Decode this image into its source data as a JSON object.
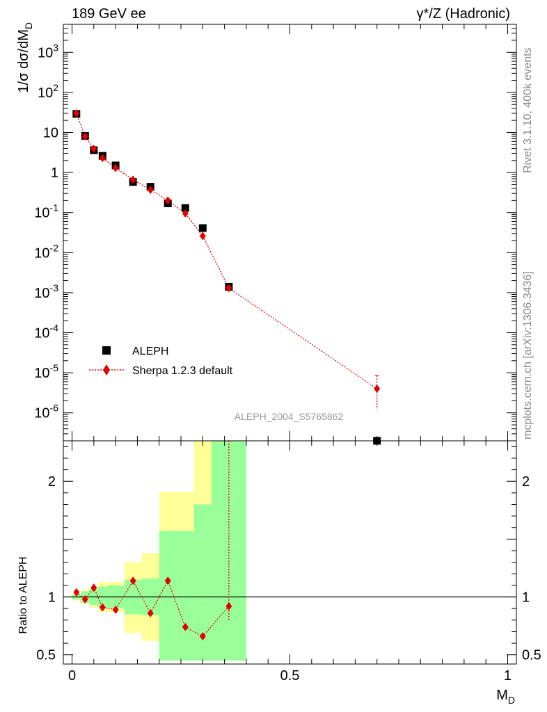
{
  "header": {
    "left": "189 GeV ee",
    "right": "γ*/Z (Hadronic)"
  },
  "side": {
    "top": "Rivet 3.1.10,  400k events",
    "bottom": "mcplots.cern.ch [arXiv:1306.3436]"
  },
  "watermark": "ALEPH_2004_S5765862",
  "colors": {
    "data": "#000000",
    "mc": "#e30000",
    "band_inner": "#99ff99",
    "band_outer": "#ffff99"
  },
  "chart_data": [
    {
      "type": "scatter",
      "ylabel": "1/σ  dσ/dM_D",
      "yscale": "log",
      "ylim": [
        2e-07,
        5000
      ],
      "xlim": [
        -0.02,
        1.02
      ],
      "y_ticks": [
        {
          "v": 1000.0,
          "label": "10^3"
        },
        {
          "v": 100.0,
          "label": "10^2"
        },
        {
          "v": 10,
          "label": "10"
        },
        {
          "v": 1,
          "label": "1"
        },
        {
          "v": 0.1,
          "label": "10^-1"
        },
        {
          "v": 0.01,
          "label": "10^-2"
        },
        {
          "v": 0.001,
          "label": "10^-3"
        },
        {
          "v": 0.0001,
          "label": "10^-4"
        },
        {
          "v": 1e-05,
          "label": "10^-5"
        },
        {
          "v": 1e-06,
          "label": "10^-6"
        }
      ],
      "legend": {
        "placement": "lower-left",
        "entries": [
          "ALEPH",
          "Sherpa 1.2.3 default"
        ]
      },
      "series": [
        {
          "name": "ALEPH",
          "marker": "square",
          "x": [
            0.01,
            0.03,
            0.05,
            0.07,
            0.1,
            0.14,
            0.18,
            0.22,
            0.26,
            0.3,
            0.36,
            0.7
          ],
          "y": [
            29,
            8.2,
            3.6,
            2.6,
            1.5,
            0.58,
            0.44,
            0.17,
            0.13,
            0.041,
            0.0014,
            2e-07
          ]
        },
        {
          "name": "Sherpa 1.2.3 default",
          "marker": "diamond",
          "line": "dotted",
          "x": [
            0.01,
            0.03,
            0.05,
            0.07,
            0.1,
            0.14,
            0.18,
            0.22,
            0.26,
            0.3,
            0.36,
            0.7
          ],
          "y": [
            30,
            8.0,
            3.9,
            2.3,
            1.3,
            0.66,
            0.37,
            0.2,
            0.095,
            0.026,
            0.0013,
            4e-06
          ],
          "err_last": [
            1.2e-06,
            8.5e-06
          ]
        }
      ]
    },
    {
      "type": "scatter",
      "xlabel": "M_D",
      "ylabel": "Ratio to ALEPH",
      "xlim": [
        -0.02,
        1.02
      ],
      "ylim": [
        0.42,
        2.35
      ],
      "x_ticks": [
        {
          "v": 0,
          "label": "0"
        },
        {
          "v": 0.5,
          "label": "0.5"
        },
        {
          "v": 1,
          "label": "1"
        }
      ],
      "y_ticks": [
        {
          "v": 0.5,
          "label": "0.5"
        },
        {
          "v": 1,
          "label": "1"
        },
        {
          "v": 2,
          "label": "2"
        }
      ],
      "reference_line": 1,
      "bands": [
        {
          "x0": 0.0,
          "x1": 0.02,
          "inner": [
            0.98,
            1.02
          ],
          "outer": [
            0.97,
            1.03
          ]
        },
        {
          "x0": 0.02,
          "x1": 0.04,
          "inner": [
            0.95,
            1.05
          ],
          "outer": [
            0.94,
            1.06
          ]
        },
        {
          "x0": 0.04,
          "x1": 0.06,
          "inner": [
            0.93,
            1.07
          ],
          "outer": [
            0.91,
            1.09
          ]
        },
        {
          "x0": 0.06,
          "x1": 0.08,
          "inner": [
            0.91,
            1.09
          ],
          "outer": [
            0.87,
            1.13
          ]
        },
        {
          "x0": 0.08,
          "x1": 0.12,
          "inner": [
            0.9,
            1.1
          ],
          "outer": [
            0.87,
            1.13
          ]
        },
        {
          "x0": 0.12,
          "x1": 0.16,
          "inner": [
            0.85,
            1.15
          ],
          "outer": [
            0.69,
            1.3
          ]
        },
        {
          "x0": 0.16,
          "x1": 0.2,
          "inner": [
            0.84,
            1.16
          ],
          "outer": [
            0.62,
            1.38
          ]
        },
        {
          "x0": 0.2,
          "x1": 0.24,
          "inner": [
            0.45,
            1.57
          ],
          "outer": [
            0.45,
            1.91
          ]
        },
        {
          "x0": 0.24,
          "x1": 0.28,
          "inner": [
            0.45,
            1.57
          ],
          "outer": [
            0.45,
            1.91
          ]
        },
        {
          "x0": 0.28,
          "x1": 0.32,
          "inner": [
            0.45,
            1.8
          ],
          "outer": [
            0.45,
            2.35
          ]
        },
        {
          "x0": 0.32,
          "x1": 0.4,
          "inner": [
            0.45,
            2.35
          ],
          "outer": [
            0.45,
            2.35
          ]
        }
      ],
      "series": [
        {
          "name": "Sherpa 1.2.3 default",
          "x": [
            0.01,
            0.03,
            0.05,
            0.07,
            0.1,
            0.14,
            0.18,
            0.22,
            0.26,
            0.3,
            0.36
          ],
          "y": [
            1.04,
            0.98,
            1.08,
            0.91,
            0.89,
            1.14,
            0.86,
            1.14,
            0.74,
            0.66,
            0.92
          ],
          "err_last": [
            0.79,
            2.35
          ]
        }
      ]
    }
  ]
}
